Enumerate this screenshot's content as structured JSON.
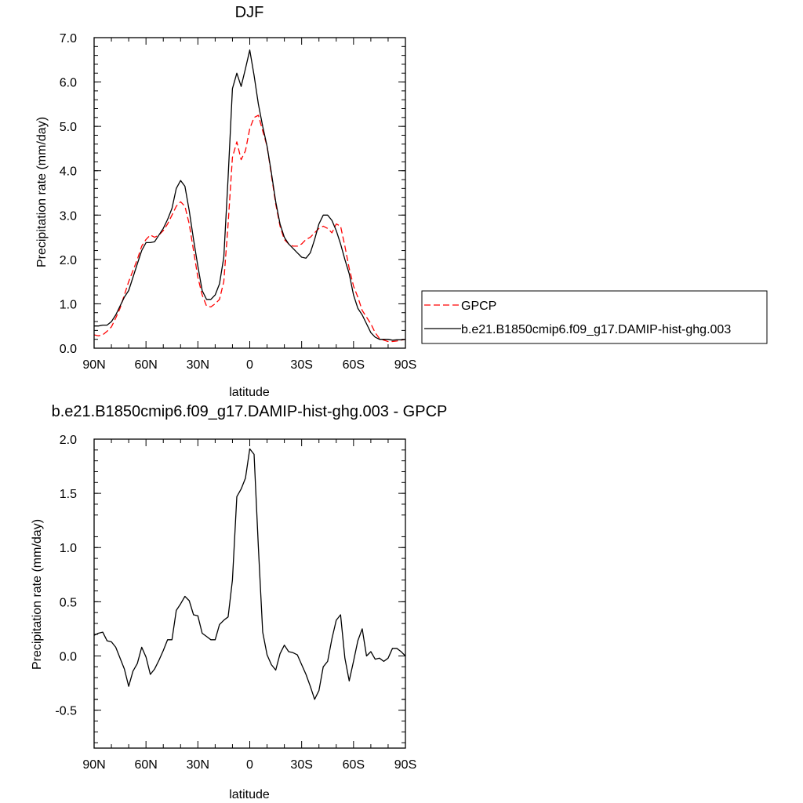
{
  "chart_data": [
    {
      "type": "line",
      "title": "DJF",
      "xlabel": "latitude",
      "ylabel": "Precipitation rate (mm/day)",
      "xlim": [
        90,
        -90
      ],
      "ylim": [
        0,
        7
      ],
      "xticks": [
        90,
        60,
        30,
        0,
        -30,
        -60,
        -90
      ],
      "xticklabels": [
        "90N",
        "60N",
        "30N",
        "0",
        "30S",
        "60S",
        "90S"
      ],
      "yticks": [
        0,
        1,
        2,
        3,
        4,
        5,
        6,
        7
      ],
      "yticklabels": [
        "0.0",
        "1.0",
        "2.0",
        "3.0",
        "4.0",
        "5.0",
        "6.0",
        "7.0"
      ],
      "grid": false,
      "legend_position": "outside-right",
      "legend": [
        "GPCP",
        "b.e21.B1850cmip6.f09_g17.DAMIP-hist-ghg.003"
      ],
      "series": [
        {
          "name": "GPCP",
          "color": "#ff0000",
          "dash": "dashed",
          "x": [
            90,
            87.5,
            85,
            82.5,
            80,
            77.5,
            75,
            72.5,
            70,
            67.5,
            65,
            62.5,
            60,
            57.5,
            55,
            52.5,
            50,
            47.5,
            45,
            42.5,
            40,
            37.5,
            35,
            32.5,
            30,
            27.5,
            25,
            22.5,
            20,
            17.5,
            15,
            12.5,
            10,
            7.5,
            5,
            2.5,
            0,
            -2.5,
            -5,
            -7.5,
            -10,
            -12.5,
            -15,
            -17.5,
            -20,
            -22.5,
            -25,
            -27.5,
            -30,
            -32.5,
            -35,
            -37.5,
            -40,
            -42.5,
            -45,
            -47.5,
            -50,
            -52.5,
            -55,
            -57.5,
            -60,
            -62.5,
            -65,
            -67.5,
            -70,
            -72.5,
            -75,
            -77.5,
            -80,
            -82.5,
            -85,
            -87.5,
            -90
          ],
          "values": [
            0.3,
            0.28,
            0.3,
            0.38,
            0.48,
            0.68,
            0.9,
            1.2,
            1.5,
            1.75,
            2.0,
            2.3,
            2.45,
            2.55,
            2.5,
            2.55,
            2.65,
            2.8,
            3.0,
            3.2,
            3.3,
            3.2,
            2.8,
            2.2,
            1.6,
            1.2,
            0.95,
            0.93,
            1.0,
            1.1,
            1.5,
            2.8,
            4.3,
            4.65,
            4.25,
            4.45,
            4.95,
            5.2,
            5.25,
            4.9,
            4.55,
            3.9,
            3.25,
            2.75,
            2.45,
            2.35,
            2.3,
            2.3,
            2.35,
            2.45,
            2.5,
            2.6,
            2.7,
            2.75,
            2.7,
            2.6,
            2.8,
            2.75,
            2.3,
            1.8,
            1.4,
            1.15,
            0.85,
            0.7,
            0.55,
            0.35,
            0.22,
            0.18,
            0.15,
            0.15,
            0.16,
            0.18,
            0.2
          ],
          "legend_label": "GPCP"
        },
        {
          "name": "b.e21.B1850cmip6.f09_g17.DAMIP-hist-ghg.003",
          "color": "#000000",
          "dash": "solid",
          "x": [
            90,
            87.5,
            85,
            82.5,
            80,
            77.5,
            75,
            72.5,
            70,
            67.5,
            65,
            62.5,
            60,
            57.5,
            55,
            52.5,
            50,
            47.5,
            45,
            42.5,
            40,
            37.5,
            35,
            32.5,
            30,
            27.5,
            25,
            22.5,
            20,
            17.5,
            15,
            12.5,
            10,
            7.5,
            5,
            2.5,
            0,
            -2.5,
            -5,
            -7.5,
            -10,
            -12.5,
            -15,
            -17.5,
            -20,
            -22.5,
            -25,
            -27.5,
            -30,
            -32.5,
            -35,
            -37.5,
            -40,
            -42.5,
            -45,
            -47.5,
            -50,
            -52.5,
            -55,
            -57.5,
            -60,
            -62.5,
            -65,
            -67.5,
            -70,
            -72.5,
            -75,
            -77.5,
            -80,
            -82.5,
            -85,
            -87.5,
            -90
          ],
          "values": [
            0.5,
            0.5,
            0.52,
            0.52,
            0.6,
            0.75,
            0.95,
            1.15,
            1.3,
            1.6,
            1.9,
            2.2,
            2.38,
            2.38,
            2.4,
            2.55,
            2.7,
            2.9,
            3.15,
            3.6,
            3.78,
            3.65,
            3.1,
            2.45,
            1.85,
            1.3,
            1.1,
            1.1,
            1.2,
            1.45,
            2.05,
            3.85,
            5.85,
            6.2,
            5.9,
            6.3,
            6.72,
            6.15,
            5.5,
            5.0,
            4.55,
            3.95,
            3.3,
            2.8,
            2.5,
            2.35,
            2.25,
            2.15,
            2.05,
            2.03,
            2.15,
            2.45,
            2.8,
            3.0,
            3.0,
            2.88,
            2.65,
            2.35,
            2.0,
            1.68,
            1.2,
            0.9,
            0.75,
            0.55,
            0.35,
            0.25,
            0.2,
            0.2,
            0.2,
            0.18,
            0.19,
            0.19,
            0.2
          ],
          "legend_label": "b.e21.B1850cmip6.f09_g17.DAMIP-hist-ghg.003"
        }
      ]
    },
    {
      "type": "line",
      "title": "b.e21.B1850cmip6.f09_g17.DAMIP-hist-ghg.003 - GPCP",
      "xlabel": "latitude",
      "ylabel": "Precipitation rate (mm/day)",
      "xlim": [
        90,
        -90
      ],
      "ylim": [
        -0.85,
        2.0
      ],
      "xticks": [
        90,
        60,
        30,
        0,
        -30,
        -60,
        -90
      ],
      "xticklabels": [
        "90N",
        "60N",
        "30N",
        "0",
        "30S",
        "60S",
        "90S"
      ],
      "yticks": [
        -0.5,
        0,
        0.5,
        1.0,
        1.5,
        2.0
      ],
      "yticklabels": [
        "-0.5",
        "0.0",
        "0.5",
        "1.0",
        "1.5",
        "2.0"
      ],
      "grid": false,
      "series": [
        {
          "color": "#000000",
          "dash": "solid",
          "x": [
            90,
            87.5,
            85,
            82.5,
            80,
            77.5,
            75,
            72.5,
            70,
            67.5,
            65,
            62.5,
            60,
            57.5,
            55,
            52.5,
            50,
            47.5,
            45,
            42.5,
            40,
            37.5,
            35,
            32.5,
            30,
            27.5,
            25,
            22.5,
            20,
            17.5,
            15,
            12.5,
            10,
            7.5,
            5,
            2.5,
            0,
            -2.5,
            -5,
            -7.5,
            -10,
            -12.5,
            -15,
            -17.5,
            -20,
            -22.5,
            -25,
            -27.5,
            -30,
            -32.5,
            -35,
            -37.5,
            -40,
            -42.5,
            -45,
            -47.5,
            -50,
            -52.5,
            -55,
            -57.5,
            -60,
            -62.5,
            -65,
            -67.5,
            -70,
            -72.5,
            -75,
            -77.5,
            -80,
            -82.5,
            -85,
            -87.5,
            -90
          ],
          "values": [
            0.19,
            0.21,
            0.22,
            0.14,
            0.13,
            0.08,
            -0.02,
            -0.12,
            -0.28,
            -0.14,
            -0.07,
            0.08,
            -0.01,
            -0.17,
            -0.12,
            -0.04,
            0.05,
            0.15,
            0.15,
            0.42,
            0.48,
            0.55,
            0.51,
            0.38,
            0.37,
            0.21,
            0.18,
            0.15,
            0.15,
            0.29,
            0.33,
            0.36,
            0.7,
            1.47,
            1.54,
            1.64,
            1.91,
            1.86,
            1.0,
            0.22,
            0.01,
            -0.08,
            -0.13,
            0.02,
            0.1,
            0.04,
            0.03,
            0.01,
            -0.08,
            -0.17,
            -0.28,
            -0.4,
            -0.32,
            -0.1,
            -0.05,
            0.16,
            0.33,
            0.38,
            -0.02,
            -0.23,
            -0.05,
            0.14,
            0.25,
            0.0,
            0.04,
            -0.03,
            -0.02,
            -0.05,
            -0.02,
            0.07,
            0.07,
            0.04,
            0.0
          ]
        }
      ]
    }
  ]
}
